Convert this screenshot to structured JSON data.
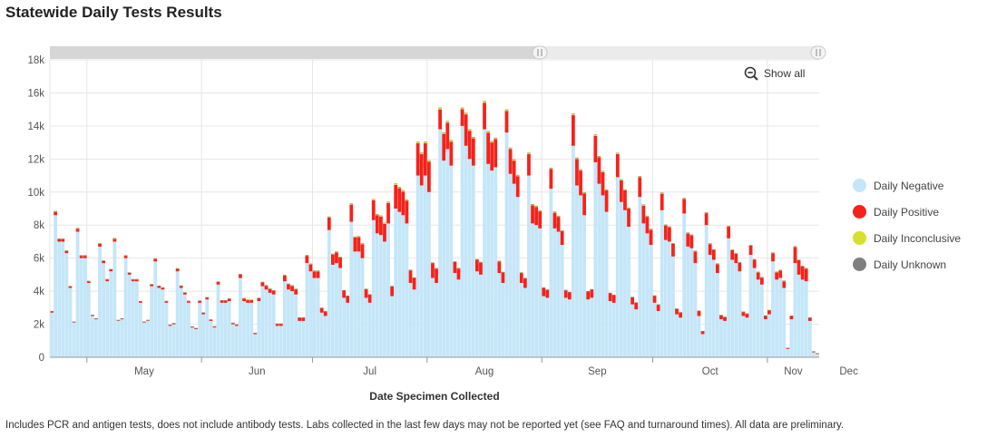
{
  "title": "Statewide Daily Tests Results",
  "footnote": "Includes PCR and antigen tests, does not include antibody tests. Labs collected in the last few days may not be reported yet (see FAQ and turnaround times). All data are preliminary.",
  "show_all_label": "Show all",
  "zoom_icon": "zoom-out-icon",
  "colors": {
    "negative": "#c4e6f8",
    "positive": "#f5221b",
    "inconclusive": "#d8df2c",
    "unknown": "#7f7f7f"
  },
  "legend": [
    {
      "label": "Daily Negative",
      "color": "#c4e6f8"
    },
    {
      "label": "Daily Positive",
      "color": "#f5221b"
    },
    {
      "label": "Daily Inconclusive",
      "color": "#d8df2c"
    },
    {
      "label": "Daily Unknown",
      "color": "#7f7f7f"
    }
  ],
  "chart_data": {
    "type": "bar",
    "stacked": true,
    "title": "Statewide Daily Tests Results",
    "xlabel": "Date Specimen Collected",
    "ylabel": "",
    "ylim": [
      0,
      18000
    ],
    "yticks": [
      0,
      2000,
      4000,
      6000,
      8000,
      10000,
      12000,
      14000,
      16000,
      18000
    ],
    "ytick_labels": [
      "0",
      "2k",
      "4k",
      "6k",
      "8k",
      "10k",
      "12k",
      "14k",
      "16k",
      "18k"
    ],
    "x_start": "2020-04-21",
    "month_labels": [
      "May",
      "Jun",
      "Jul",
      "Aug",
      "Sep",
      "Oct",
      "Nov",
      "Dec"
    ],
    "series": [
      {
        "name": "Daily Negative",
        "values": [
          2700,
          8600,
          7000,
          7000,
          6300,
          4200,
          2100,
          7600,
          6000,
          6000,
          4500,
          2500,
          2300,
          6700,
          5700,
          4600,
          5200,
          7000,
          2200,
          2300,
          6000,
          5000,
          4600,
          4600,
          3300,
          2100,
          2200,
          4300,
          5800,
          4200,
          4100,
          3300,
          1900,
          2000,
          5200,
          4200,
          3800,
          3300,
          1800,
          1700,
          3300,
          2600,
          3500,
          2200,
          1800,
          4400,
          3300,
          3300,
          3400,
          2000,
          1900,
          4800,
          3400,
          3300,
          3300,
          1400,
          3400,
          4300,
          4100,
          3900,
          3800,
          1900,
          1900,
          4600,
          4100,
          4000,
          3800,
          2200,
          2200,
          5700,
          5200,
          4800,
          4800,
          2700,
          2500,
          7700,
          5600,
          5700,
          5400,
          3600,
          3300,
          8200,
          6400,
          6400,
          6000,
          3600,
          3300,
          8300,
          7500,
          7400,
          7000,
          8100,
          3700,
          9000,
          8800,
          8600,
          8100,
          4500,
          4100,
          11000,
          10400,
          11000,
          10000,
          4800,
          4500,
          13800,
          11900,
          12600,
          11600,
          5100,
          4700,
          14000,
          12800,
          12000,
          11600,
          5200,
          5000,
          13800,
          11700,
          11300,
          11500,
          5100,
          4500,
          13600,
          11100,
          10500,
          9700,
          4500,
          4200,
          11000,
          8100,
          8000,
          7800,
          3700,
          3600,
          10200,
          7800,
          7600,
          6800,
          3600,
          3500,
          12800,
          10400,
          9800,
          8600,
          3500,
          3600,
          11800,
          10500,
          9800,
          8800,
          3400,
          3300,
          10900,
          9400,
          8900,
          7900,
          3200,
          2900,
          9700,
          8100,
          7500,
          6800,
          3300,
          2800,
          8900,
          7100,
          7000,
          6100,
          2600,
          2400,
          8700,
          6700,
          6600,
          5700,
          2500,
          1400,
          8000,
          6200,
          5900,
          5100,
          2300,
          2200,
          7200,
          5900,
          5700,
          5200,
          2500,
          2400,
          6200,
          5400,
          4700,
          4400,
          2300,
          2600,
          5800,
          4700,
          4800,
          4200,
          500,
          2300,
          5700,
          5000,
          4700,
          4600,
          2200,
          300,
          200
        ],
        "color": "#c4e6f8"
      },
      {
        "name": "Daily Positive",
        "values": [
          80,
          200,
          150,
          150,
          130,
          90,
          50,
          180,
          140,
          140,
          100,
          60,
          50,
          160,
          130,
          110,
          120,
          170,
          50,
          50,
          140,
          110,
          110,
          110,
          80,
          50,
          50,
          110,
          150,
          110,
          110,
          90,
          60,
          60,
          150,
          120,
          110,
          100,
          60,
          60,
          110,
          90,
          120,
          80,
          70,
          160,
          130,
          130,
          140,
          80,
          80,
          210,
          160,
          160,
          160,
          70,
          180,
          230,
          230,
          230,
          230,
          130,
          130,
          350,
          320,
          320,
          310,
          200,
          200,
          440,
          420,
          400,
          400,
          280,
          270,
          760,
          620,
          650,
          640,
          440,
          410,
          1040,
          850,
          870,
          840,
          520,
          490,
          1200,
          1100,
          1110,
          1070,
          1240,
          580,
          1430,
          1430,
          1420,
          1370,
          760,
          700,
          1950,
          1900,
          1950,
          1840,
          900,
          860,
          1200,
          1620,
          1600,
          1450,
          670,
          670,
          1010,
          1900,
          1710,
          1650,
          700,
          730,
          1600,
          1900,
          1700,
          1700,
          700,
          630,
          1300,
          1500,
          1400,
          1260,
          600,
          570,
          1300,
          1100,
          1100,
          1030,
          500,
          480,
          1200,
          950,
          900,
          830,
          450,
          430,
          1850,
          1600,
          1500,
          1320,
          480,
          500,
          1600,
          1600,
          1400,
          1300,
          480,
          460,
          1400,
          1300,
          1200,
          1100,
          430,
          400,
          1200,
          1080,
          1000,
          920,
          420,
          380,
          1000,
          880,
          870,
          760,
          330,
          310,
          880,
          800,
          780,
          700,
          300,
          180,
          720,
          650,
          600,
          540,
          250,
          240,
          700,
          580,
          560,
          520,
          250,
          240,
          560,
          500,
          440,
          420,
          220,
          250,
          500,
          440,
          450,
          400,
          60,
          210,
          970,
          870,
          800,
          760,
          200,
          50,
          40
        ],
        "color": "#f5221b"
      },
      {
        "name": "Daily Inconclusive",
        "values": [
          20,
          40,
          30,
          30,
          30,
          20,
          10,
          40,
          30,
          30,
          20,
          10,
          10,
          30,
          30,
          20,
          20,
          30,
          10,
          10,
          30,
          20,
          20,
          20,
          20,
          10,
          10,
          20,
          30,
          20,
          20,
          20,
          10,
          10,
          30,
          20,
          20,
          20,
          10,
          10,
          20,
          20,
          20,
          10,
          10,
          20,
          20,
          20,
          20,
          10,
          10,
          30,
          20,
          20,
          20,
          10,
          20,
          30,
          30,
          30,
          30,
          10,
          10,
          30,
          30,
          30,
          30,
          10,
          10,
          40,
          40,
          40,
          40,
          20,
          20,
          50,
          40,
          40,
          40,
          20,
          20,
          60,
          50,
          50,
          50,
          20,
          20,
          60,
          60,
          60,
          60,
          60,
          30,
          70,
          70,
          70,
          60,
          30,
          30,
          80,
          80,
          80,
          70,
          30,
          30,
          90,
          80,
          80,
          70,
          30,
          30,
          80,
          80,
          70,
          70,
          30,
          30,
          90,
          80,
          70,
          70,
          30,
          30,
          80,
          70,
          70,
          60,
          30,
          30,
          70,
          60,
          60,
          50,
          20,
          20,
          60,
          50,
          50,
          40,
          20,
          20,
          80,
          70,
          60,
          50,
          20,
          20,
          70,
          60,
          60,
          50,
          20,
          20,
          60,
          60,
          50,
          50,
          20,
          20,
          60,
          50,
          50,
          40,
          20,
          20,
          50,
          40,
          40,
          40,
          20,
          20,
          50,
          40,
          40,
          40,
          20,
          10,
          40,
          40,
          30,
          30,
          10,
          10,
          40,
          30,
          30,
          30,
          10,
          10,
          30,
          30,
          30,
          30,
          10,
          10,
          30,
          30,
          30,
          30,
          10,
          10,
          40,
          30,
          30,
          30,
          10,
          10,
          10
        ],
        "color": "#d8df2c"
      },
      {
        "name": "Daily Unknown",
        "values": [
          5,
          10,
          10,
          10,
          10,
          5,
          5,
          10,
          10,
          10,
          5,
          5,
          5,
          10,
          10,
          5,
          5,
          10,
          5,
          5,
          10,
          5,
          5,
          5,
          5,
          5,
          5,
          5,
          10,
          5,
          5,
          5,
          5,
          5,
          10,
          5,
          5,
          5,
          5,
          5,
          5,
          5,
          5,
          5,
          5,
          5,
          5,
          5,
          5,
          5,
          5,
          10,
          5,
          5,
          5,
          5,
          5,
          5,
          5,
          5,
          5,
          5,
          5,
          10,
          10,
          10,
          10,
          5,
          5,
          10,
          10,
          10,
          10,
          5,
          5,
          10,
          10,
          10,
          10,
          5,
          5,
          10,
          10,
          10,
          10,
          5,
          5,
          10,
          10,
          10,
          10,
          10,
          5,
          15,
          15,
          15,
          15,
          5,
          5,
          15,
          15,
          15,
          15,
          5,
          5,
          20,
          20,
          20,
          20,
          10,
          10,
          20,
          20,
          20,
          20,
          10,
          10,
          20,
          20,
          20,
          20,
          10,
          10,
          20,
          20,
          20,
          20,
          10,
          10,
          20,
          15,
          15,
          15,
          5,
          5,
          15,
          15,
          15,
          15,
          5,
          5,
          20,
          15,
          15,
          15,
          5,
          5,
          15,
          15,
          15,
          15,
          5,
          5,
          15,
          15,
          15,
          15,
          5,
          5,
          15,
          15,
          15,
          15,
          5,
          5,
          15,
          10,
          10,
          10,
          5,
          5,
          10,
          10,
          10,
          10,
          5,
          5,
          10,
          10,
          10,
          10,
          5,
          5,
          10,
          10,
          10,
          10,
          5,
          5,
          10,
          10,
          10,
          10,
          5,
          5,
          10,
          10,
          10,
          10,
          5,
          5,
          10,
          10,
          10,
          10,
          5,
          5,
          5
        ],
        "color": "#7f7f7f"
      }
    ]
  }
}
